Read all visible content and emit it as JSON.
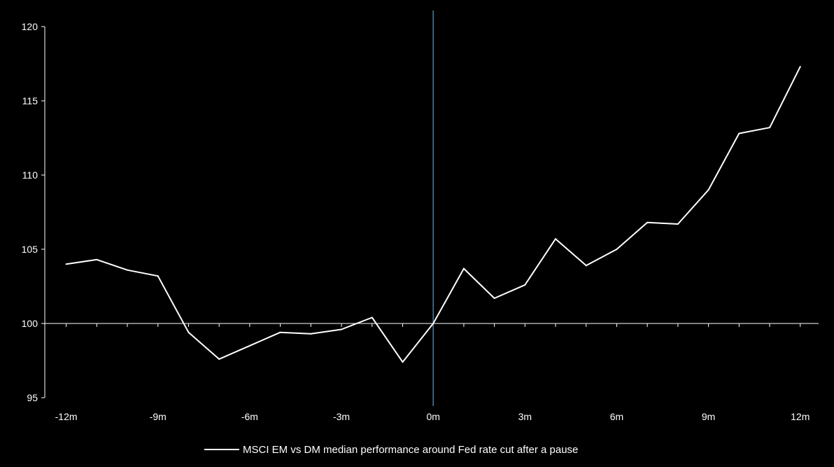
{
  "chart_data": {
    "type": "line",
    "title": "",
    "xlabel": "",
    "ylabel": "",
    "x": [
      -12,
      -11,
      -10,
      -9,
      -8,
      -7,
      -6,
      -5,
      -4,
      -3,
      -2,
      -1,
      0,
      1,
      2,
      3,
      4,
      5,
      6,
      7,
      8,
      9,
      10,
      11,
      12
    ],
    "xlim": [
      -12.7,
      12.6
    ],
    "ylim": [
      95,
      120
    ],
    "x_ticks": [
      {
        "value": -12,
        "label": "-12m"
      },
      {
        "value": -9,
        "label": "-9m"
      },
      {
        "value": -6,
        "label": "-6m"
      },
      {
        "value": -3,
        "label": "-3m"
      },
      {
        "value": 0,
        "label": "0m"
      },
      {
        "value": 3,
        "label": "3m"
      },
      {
        "value": 6,
        "label": "6m"
      },
      {
        "value": 9,
        "label": "9m"
      },
      {
        "value": 12,
        "label": "12m"
      }
    ],
    "y_ticks": [
      {
        "value": 95,
        "label": "95"
      },
      {
        "value": 100,
        "label": "100"
      },
      {
        "value": 105,
        "label": "105"
      },
      {
        "value": 110,
        "label": "110"
      },
      {
        "value": 115,
        "label": "115"
      },
      {
        "value": 120,
        "label": "120"
      }
    ],
    "vertical_line_x": 0,
    "x_axis_at_y": 100,
    "grid": false,
    "legend_position": "bottom",
    "series": [
      {
        "name": "MSCI EM vs DM median performance around Fed rate cut after a pause",
        "color": "#ffffff",
        "values": [
          104.0,
          104.3,
          103.6,
          103.2,
          99.4,
          97.6,
          98.5,
          99.4,
          99.3,
          99.6,
          100.4,
          97.4,
          100.0,
          103.7,
          101.7,
          102.6,
          105.7,
          103.9,
          105.0,
          106.8,
          106.7,
          109.0,
          112.8,
          113.2,
          117.3
        ]
      }
    ],
    "colors": {
      "background": "#000000",
      "axis": "#ffffff",
      "vertical_line": "#3d7fb5"
    }
  }
}
